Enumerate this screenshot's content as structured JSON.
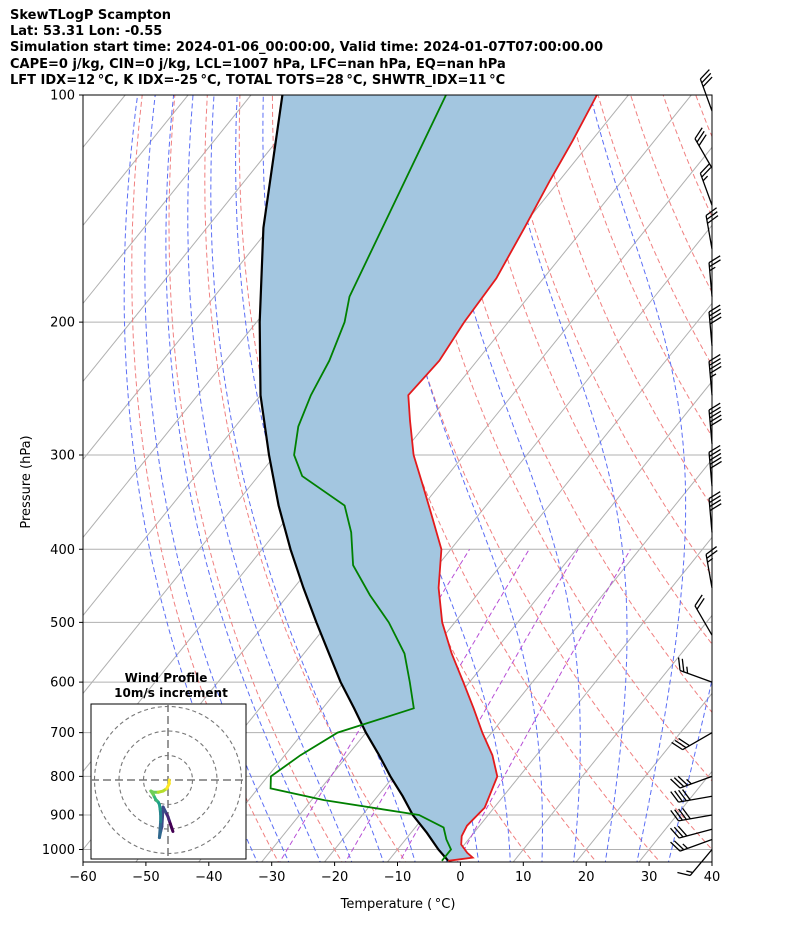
{
  "header": {
    "line1": "SkewTLogP Scampton",
    "line2": "Lat: 53.31   Lon: -0.55",
    "line3": "Simulation start time: 2024-01-06_00:00:00, Valid time: 2024-01-07T07:00:00.00",
    "line4": "CAPE=0 j/kg, CIN=0 j/kg, LCL=1007 hPa, LFC=nan hPa, EQ=nan hPa",
    "line5": "LFT IDX=12 °C, K IDX=-25 °C, TOTAL TOTS=28 °C, SHWTR_IDX=11 °C"
  },
  "colors": {
    "temperature": "#e41a1c",
    "dewpoint": "#008000",
    "parcel": "#000000",
    "cape_fill": "#a3c6e0",
    "dry_adiabats": "#f08080",
    "moist_adiabats": "#5b6ef5",
    "mixing_ratio": "#b74fd6",
    "isotherms": "#b0b0b0"
  },
  "chart_data": [
    {
      "type": "line",
      "subtype": "skew-T log-P diagram",
      "xlabel": "Temperature ( °C)",
      "ylabel": "Pressure (hPa)",
      "xlim": [
        -60,
        40
      ],
      "ylim": [
        1050,
        100
      ],
      "y_scale": "log",
      "grid": true,
      "x_ticks": [
        -60,
        -50,
        -40,
        -30,
        -20,
        -10,
        0,
        10,
        20,
        30,
        40
      ],
      "x_tick_labels": [
        "−60",
        "−50",
        "−40",
        "−30",
        "−20",
        "−10",
        "0",
        "10",
        "20",
        "30",
        "40"
      ],
      "y_ticks": [
        1000,
        900,
        800,
        700,
        600,
        500,
        400,
        300,
        200,
        100
      ],
      "y_tick_labels": [
        "1000",
        "900",
        "800",
        "700",
        "600",
        "500",
        "400",
        "300",
        "200",
        "100"
      ],
      "series": [
        {
          "key": "temperature",
          "pressure": [
            1035,
            1025,
            1010,
            985,
            960,
            930,
            880,
            800,
            750,
            700,
            650,
            600,
            550,
            500,
            450,
            400,
            360,
            330,
            300,
            270,
            250,
            225,
            200,
            175,
            150,
            130,
            115,
            100
          ],
          "temperature": [
            -0.5,
            3.0,
            1.5,
            -0.5,
            -1.5,
            -2.0,
            -1.5,
            -3.5,
            -7.0,
            -11.5,
            -16.0,
            -21.0,
            -26.5,
            -32.0,
            -37.0,
            -41.5,
            -47.5,
            -52.5,
            -58.0,
            -63.0,
            -66.5,
            -66.0,
            -67.0,
            -67.5,
            -69.5,
            -71.5,
            -73.0,
            -75.0
          ]
        },
        {
          "key": "dewpoint",
          "pressure": [
            1035,
            1000,
            970,
            935,
            900,
            860,
            830,
            800,
            750,
            700,
            650,
            600,
            550,
            500,
            460,
            420,
            380,
            350,
            320,
            300,
            275,
            250,
            225,
            200,
            185,
            100
          ],
          "temperature": [
            -1.5,
            -1.5,
            -3.5,
            -5.5,
            -11.0,
            -28.0,
            -38.0,
            -39.5,
            -37.5,
            -34.5,
            -25.5,
            -29.5,
            -34.0,
            -40.5,
            -47.0,
            -53.5,
            -58.0,
            -62.5,
            -73.0,
            -77.0,
            -80.0,
            -82.0,
            -83.5,
            -86.0,
            -88.5,
            -99.0
          ]
        },
        {
          "key": "parcel",
          "pressure": [
            1035,
            1000,
            950,
            900,
            850,
            800,
            750,
            700,
            650,
            600,
            550,
            500,
            450,
            400,
            350,
            300,
            250,
            200,
            150,
            100
          ],
          "temperature": [
            -0.5,
            -3.5,
            -7.5,
            -12.0,
            -16.0,
            -20.5,
            -25.0,
            -30.0,
            -35.0,
            -40.5,
            -46.0,
            -52.0,
            -58.5,
            -65.5,
            -73.0,
            -81.0,
            -90.0,
            -99.5,
            -111.0,
            -125.0
          ]
        }
      ],
      "annotations": [
        "dry adiabats",
        "moist adiabats",
        "mixing ratio lines",
        "wind barbs"
      ]
    },
    {
      "type": "line",
      "subtype": "hodograph",
      "title": "Wind Profile",
      "subtitle": "10m/s increment",
      "rings_ms": [
        10,
        20,
        30
      ],
      "u": [
        2.0,
        1.5,
        1.0,
        0.5,
        0.0,
        -1.0,
        -2.0,
        -2.5,
        -3.0,
        -3.5,
        -3.0,
        -3.0,
        -3.2,
        -3.5,
        -4.0,
        -4.5,
        -5.0,
        -6.0,
        -7.0,
        -6.0,
        -4.0,
        -2.0,
        -0.5,
        0.5,
        0.5
      ],
      "v": [
        -21.0,
        -19.5,
        -18.0,
        -16.5,
        -15.0,
        -13.0,
        -11.0,
        -19.0,
        -21.0,
        -23.5,
        -17.0,
        -14.0,
        -12.0,
        -10.0,
        -9.0,
        -8.5,
        -8.0,
        -6.0,
        -4.5,
        -5.0,
        -5.0,
        -4.5,
        -3.5,
        -1.5,
        0.0
      ]
    }
  ],
  "wind_barbs": [
    {
      "p": 1000,
      "speed_kt": 15,
      "dir": 220
    },
    {
      "p": 970,
      "speed_kt": 25,
      "dir": 250
    },
    {
      "p": 940,
      "speed_kt": 30,
      "dir": 255
    },
    {
      "p": 900,
      "speed_kt": 40,
      "dir": 260
    },
    {
      "p": 850,
      "speed_kt": 40,
      "dir": 260
    },
    {
      "p": 800,
      "speed_kt": 35,
      "dir": 250
    },
    {
      "p": 700,
      "speed_kt": 30,
      "dir": 240
    },
    {
      "p": 600,
      "speed_kt": 25,
      "dir": 290
    },
    {
      "p": 520,
      "speed_kt": 20,
      "dir": 330
    },
    {
      "p": 450,
      "speed_kt": 25,
      "dir": 350
    },
    {
      "p": 380,
      "speed_kt": 40,
      "dir": 355
    },
    {
      "p": 330,
      "speed_kt": 50,
      "dir": 355
    },
    {
      "p": 290,
      "speed_kt": 50,
      "dir": 355
    },
    {
      "p": 250,
      "speed_kt": 45,
      "dir": 355
    },
    {
      "p": 215,
      "speed_kt": 40,
      "dir": 355
    },
    {
      "p": 185,
      "speed_kt": 25,
      "dir": 355
    },
    {
      "p": 160,
      "speed_kt": 30,
      "dir": 350
    },
    {
      "p": 140,
      "speed_kt": 25,
      "dir": 340
    },
    {
      "p": 125,
      "speed_kt": 30,
      "dir": 330
    },
    {
      "p": 105,
      "speed_kt": 30,
      "dir": 340
    }
  ]
}
